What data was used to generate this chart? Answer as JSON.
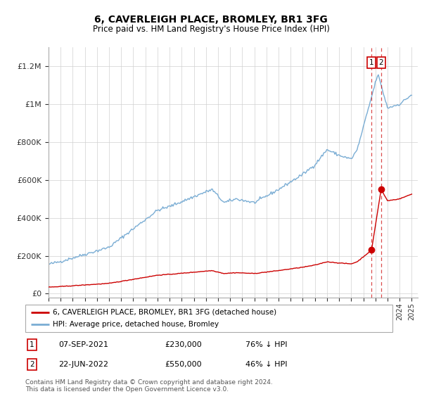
{
  "title": "6, CAVERLEIGH PLACE, BROMLEY, BR1 3FG",
  "subtitle": "Price paid vs. HM Land Registry's House Price Index (HPI)",
  "legend_line1": "6, CAVERLEIGH PLACE, BROMLEY, BR1 3FG (detached house)",
  "legend_line2": "HPI: Average price, detached house, Bromley",
  "transaction1_date": "07-SEP-2021",
  "transaction1_price": "£230,000",
  "transaction1_pct": "76% ↓ HPI",
  "transaction2_date": "22-JUN-2022",
  "transaction2_price": "£550,000",
  "transaction2_pct": "46% ↓ HPI",
  "footnote": "Contains HM Land Registry data © Crown copyright and database right 2024.\nThis data is licensed under the Open Government Licence v3.0.",
  "hpi_color": "#7aadd4",
  "price_color": "#cc0000",
  "dashed_color": "#cc0000",
  "ylim_max": 1300000,
  "yticks": [
    0,
    200000,
    400000,
    600000,
    800000,
    1000000,
    1200000
  ],
  "ytick_labels": [
    "£0",
    "£200K",
    "£400K",
    "£600K",
    "£800K",
    "£1M",
    "£1.2M"
  ],
  "t1_year": 2021.68,
  "t2_year": 2022.47,
  "t1_price": 230000,
  "t2_price": 550000
}
